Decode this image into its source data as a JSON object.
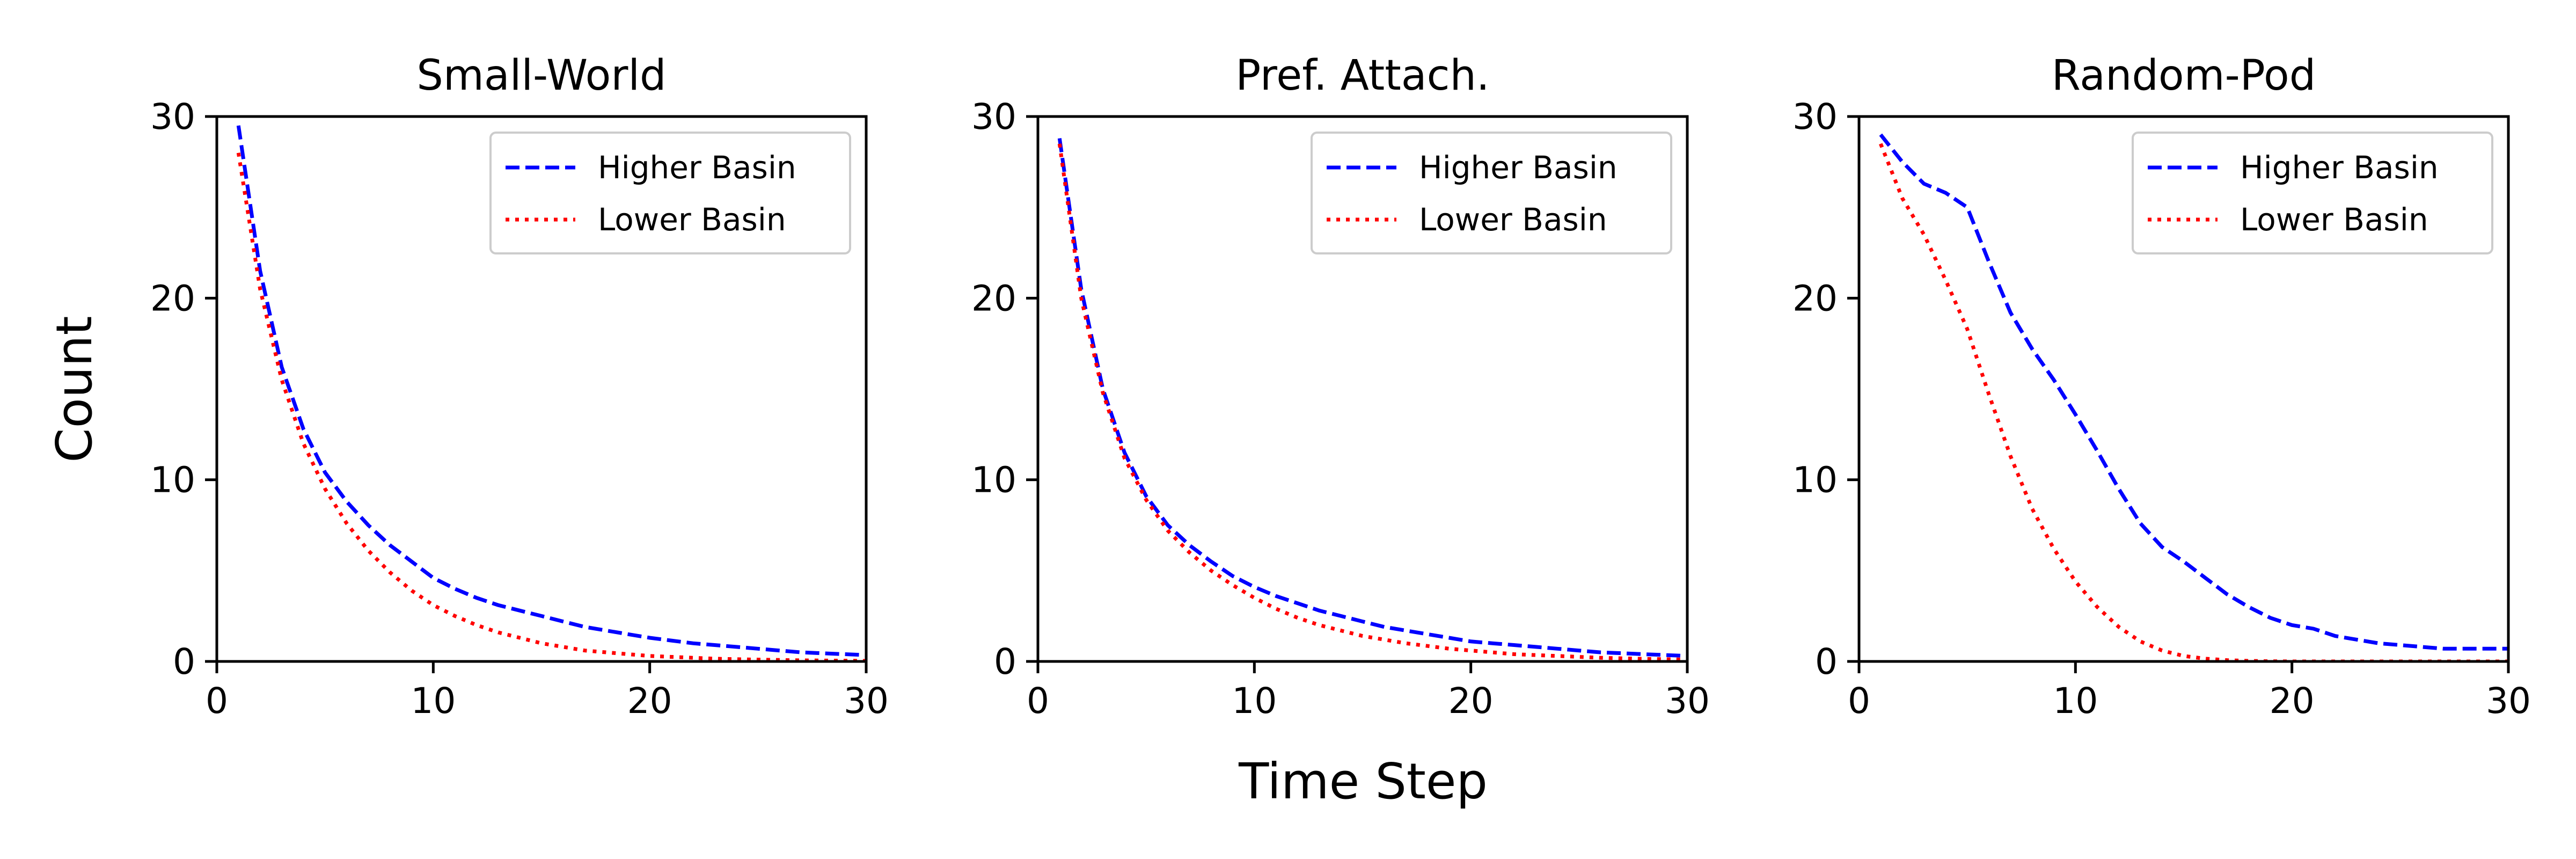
{
  "figure": {
    "ylabel": "Count",
    "xlabel": "Time Step"
  },
  "chart_data": [
    {
      "type": "line",
      "title": "Small-World",
      "xlim": [
        0,
        30
      ],
      "ylim": [
        0,
        30
      ],
      "xticks": [
        0,
        10,
        20,
        30
      ],
      "yticks": [
        0,
        10,
        20,
        30
      ],
      "grid": false,
      "legend_position": "top-right",
      "series": [
        {
          "name": "Higher Basin",
          "color": "#0000ff",
          "style": "dashed",
          "x": [
            1,
            2,
            3,
            4,
            5,
            6,
            7,
            8,
            9,
            10,
            11,
            12,
            13,
            14,
            15,
            16,
            17,
            18,
            19,
            20,
            21,
            22,
            23,
            24,
            25,
            26,
            27,
            28,
            29,
            30
          ],
          "y": [
            29.5,
            21.5,
            16.2,
            12.8,
            10.4,
            8.8,
            7.5,
            6.4,
            5.5,
            4.6,
            4.0,
            3.5,
            3.1,
            2.8,
            2.5,
            2.2,
            1.9,
            1.7,
            1.5,
            1.3,
            1.15,
            1.0,
            0.9,
            0.8,
            0.7,
            0.6,
            0.5,
            0.45,
            0.4,
            0.35
          ]
        },
        {
          "name": "Lower Basin",
          "color": "#ff0000",
          "style": "dotted",
          "x": [
            1,
            2,
            3,
            4,
            5,
            6,
            7,
            8,
            9,
            10,
            11,
            12,
            13,
            14,
            15,
            16,
            17,
            18,
            19,
            20,
            21,
            22,
            23,
            24,
            25,
            26,
            27,
            28,
            29,
            30
          ],
          "y": [
            28.0,
            20.5,
            15.5,
            12.0,
            9.5,
            7.6,
            6.1,
            4.9,
            3.9,
            3.1,
            2.5,
            2.0,
            1.6,
            1.3,
            1.0,
            0.8,
            0.6,
            0.5,
            0.4,
            0.3,
            0.25,
            0.2,
            0.15,
            0.12,
            0.1,
            0.08,
            0.06,
            0.05,
            0.04,
            0.03
          ]
        }
      ]
    },
    {
      "type": "line",
      "title": "Pref. Attach.",
      "xlim": [
        0,
        30
      ],
      "ylim": [
        0,
        30
      ],
      "xticks": [
        0,
        10,
        20,
        30
      ],
      "yticks": [
        0,
        10,
        20,
        30
      ],
      "grid": false,
      "legend_position": "top-right",
      "series": [
        {
          "name": "Higher Basin",
          "color": "#0000ff",
          "style": "dashed",
          "x": [
            1,
            2,
            3,
            4,
            5,
            6,
            7,
            8,
            9,
            10,
            11,
            12,
            13,
            14,
            15,
            16,
            17,
            18,
            19,
            20,
            21,
            22,
            23,
            24,
            25,
            26,
            27,
            28,
            29,
            30
          ],
          "y": [
            28.8,
            20.5,
            15.0,
            11.5,
            9.1,
            7.5,
            6.4,
            5.5,
            4.7,
            4.1,
            3.6,
            3.2,
            2.8,
            2.5,
            2.2,
            1.9,
            1.7,
            1.5,
            1.3,
            1.1,
            1.0,
            0.9,
            0.8,
            0.7,
            0.6,
            0.5,
            0.45,
            0.4,
            0.35,
            0.3
          ]
        },
        {
          "name": "Lower Basin",
          "color": "#ff0000",
          "style": "dotted",
          "x": [
            1,
            2,
            3,
            4,
            5,
            6,
            7,
            8,
            9,
            10,
            11,
            12,
            13,
            14,
            15,
            16,
            17,
            18,
            19,
            20,
            21,
            22,
            23,
            24,
            25,
            26,
            27,
            28,
            29,
            30
          ],
          "y": [
            28.5,
            20.0,
            14.8,
            11.2,
            8.9,
            7.2,
            6.0,
            5.0,
            4.2,
            3.5,
            2.9,
            2.4,
            2.0,
            1.7,
            1.4,
            1.2,
            1.0,
            0.85,
            0.7,
            0.6,
            0.5,
            0.4,
            0.35,
            0.3,
            0.25,
            0.2,
            0.17,
            0.14,
            0.12,
            0.1
          ]
        }
      ]
    },
    {
      "type": "line",
      "title": "Random-Pod",
      "xlim": [
        0,
        30
      ],
      "ylim": [
        0,
        30
      ],
      "xticks": [
        0,
        10,
        20,
        30
      ],
      "yticks": [
        0,
        10,
        20,
        30
      ],
      "grid": false,
      "legend_position": "top-right",
      "series": [
        {
          "name": "Higher Basin",
          "color": "#0000ff",
          "style": "dashed",
          "x": [
            1,
            2,
            3,
            4,
            5,
            6,
            7,
            8,
            9,
            10,
            11,
            12,
            13,
            14,
            15,
            16,
            17,
            18,
            19,
            20,
            21,
            22,
            23,
            24,
            25,
            26,
            27,
            28,
            29,
            30
          ],
          "y": [
            29.0,
            27.5,
            26.3,
            25.8,
            25.0,
            22.0,
            19.2,
            17.2,
            15.5,
            13.6,
            11.6,
            9.5,
            7.6,
            6.3,
            5.5,
            4.6,
            3.7,
            3.0,
            2.4,
            2.0,
            1.8,
            1.4,
            1.2,
            1.0,
            0.9,
            0.8,
            0.7,
            0.7,
            0.7,
            0.7
          ]
        },
        {
          "name": "Lower Basin",
          "color": "#ff0000",
          "style": "dotted",
          "x": [
            1,
            2,
            3,
            4,
            5,
            6,
            7,
            8,
            9,
            10,
            11,
            12,
            13,
            14,
            15,
            16,
            17,
            18,
            19,
            20,
            21,
            22,
            23,
            24,
            25,
            26,
            27,
            28,
            29,
            30
          ],
          "y": [
            28.5,
            25.5,
            23.5,
            21.0,
            18.3,
            14.7,
            11.3,
            8.4,
            6.2,
            4.4,
            3.0,
            1.9,
            1.1,
            0.6,
            0.3,
            0.15,
            0.07,
            0.03,
            0.01,
            0,
            0,
            0,
            0,
            0,
            0,
            0,
            0,
            0,
            0,
            0
          ]
        }
      ]
    }
  ]
}
